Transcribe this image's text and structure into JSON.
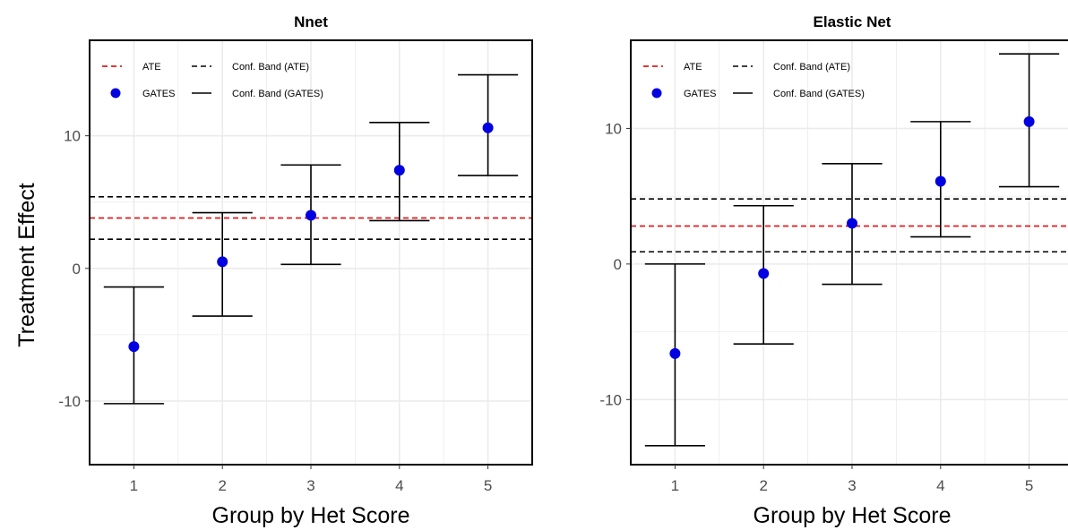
{
  "ylabel": "Treatment Effect",
  "colors": {
    "ate": "#e31a1c",
    "gates_point": "#0000e0",
    "band": "#000000",
    "grid": "#ebebeb"
  },
  "chart_data": [
    {
      "type": "scatter",
      "title": "Nnet",
      "xlabel": "Group by Het Score",
      "ylabel": "Treatment Effect",
      "categories": [
        "1",
        "2",
        "3",
        "4",
        "5"
      ],
      "yticks": [
        -10,
        0,
        10
      ],
      "ylim": [
        -14.8,
        17.2
      ],
      "grid": true,
      "legend_position": "top-left",
      "legend": {
        "ate": "ATE",
        "ate_band": "Conf. Band (ATE)",
        "gates": "GATES",
        "gates_band": "Conf. Band (GATES)"
      },
      "ate": 3.8,
      "ate_band": [
        2.2,
        5.4
      ],
      "gates": [
        -5.9,
        0.5,
        4.0,
        7.4,
        10.6
      ],
      "gates_lower": [
        -10.2,
        -3.6,
        0.3,
        3.6,
        7.0
      ],
      "gates_upper": [
        -1.4,
        4.2,
        7.8,
        11.0,
        14.6
      ]
    },
    {
      "type": "scatter",
      "title": "Elastic Net",
      "xlabel": "Group by Het Score",
      "ylabel": "",
      "categories": [
        "1",
        "2",
        "3",
        "4",
        "5"
      ],
      "yticks": [
        -10,
        0,
        10
      ],
      "ylim": [
        -14.8,
        16.5
      ],
      "grid": true,
      "legend_position": "top-left",
      "legend": {
        "ate": "ATE",
        "ate_band": "Conf. Band (ATE)",
        "gates": "GATES",
        "gates_band": "Conf. Band (GATES)"
      },
      "ate": 2.8,
      "ate_band": [
        0.9,
        4.8
      ],
      "gates": [
        -6.6,
        -0.7,
        3.0,
        6.1,
        10.5
      ],
      "gates_lower": [
        -13.4,
        -5.9,
        -1.5,
        2.0,
        5.7
      ],
      "gates_upper": [
        0.0,
        4.3,
        7.4,
        10.5,
        15.5
      ]
    }
  ]
}
